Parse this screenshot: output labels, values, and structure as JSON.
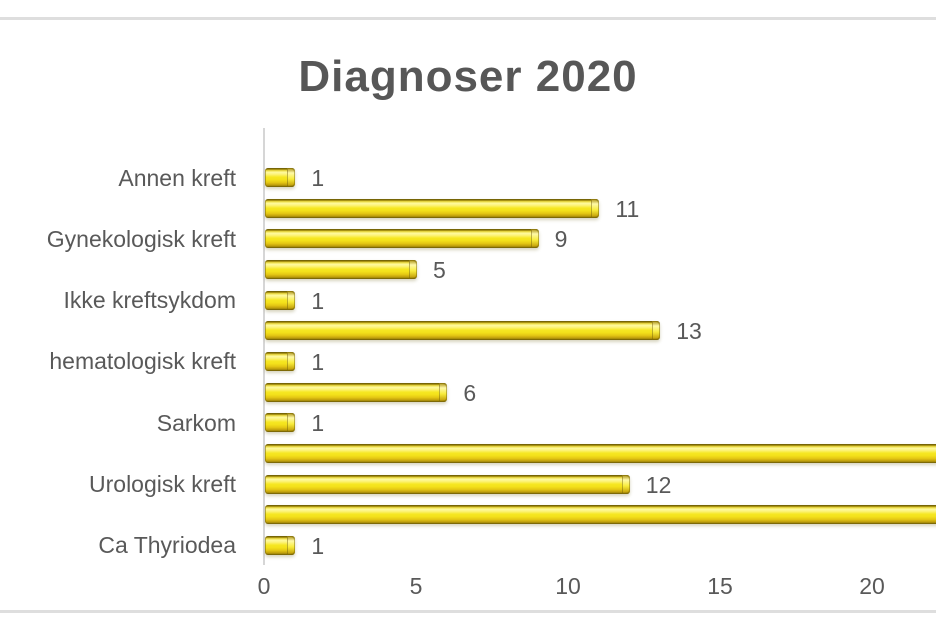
{
  "page": {
    "background_color": "#ffffff",
    "rule_color": "#dedede",
    "text_color": "#595959"
  },
  "chart_data": {
    "type": "bar",
    "orientation": "horizontal",
    "title": "Diagnoser 2020",
    "title_color": "#575757",
    "bar_color": "#f6e722",
    "bar_highlight_color": "#fffaa0",
    "bar_edge_color": "#6e5d05",
    "axis_line_color": "#d6d6d6",
    "grid": false,
    "legend": false,
    "x_ticks": [
      "0",
      "5",
      "10",
      "15",
      "20"
    ],
    "x_axis_visible_max": 22.1,
    "note": "Two bars extend past the right edge of the visible image; their values and data labels are cut off.",
    "rows": [
      {
        "label": "Annen kreft",
        "value": 1,
        "data_label": "1",
        "clipped": false
      },
      {
        "label": "",
        "value": 11,
        "data_label": "11",
        "clipped": false
      },
      {
        "label": "Gynekologisk kreft",
        "value": 9,
        "data_label": "9",
        "clipped": false
      },
      {
        "label": "",
        "value": 5,
        "data_label": "5",
        "clipped": false
      },
      {
        "label": "Ikke kreftsykdom",
        "value": 1,
        "data_label": "1",
        "clipped": false
      },
      {
        "label": "",
        "value": 13,
        "data_label": "13",
        "clipped": false
      },
      {
        "label": "hematologisk kreft",
        "value": 1,
        "data_label": "1",
        "clipped": false
      },
      {
        "label": "",
        "value": 6,
        "data_label": "6",
        "clipped": false
      },
      {
        "label": "Sarkom",
        "value": 1,
        "data_label": "1",
        "clipped": false
      },
      {
        "label": "",
        "value": null,
        "data_label": "",
        "clipped": true
      },
      {
        "label": "Urologisk kreft",
        "value": 12,
        "data_label": "12",
        "clipped": false
      },
      {
        "label": "",
        "value": null,
        "data_label": "",
        "clipped": true
      },
      {
        "label": "Ca Thyriodea",
        "value": 1,
        "data_label": "1",
        "clipped": false
      }
    ]
  }
}
